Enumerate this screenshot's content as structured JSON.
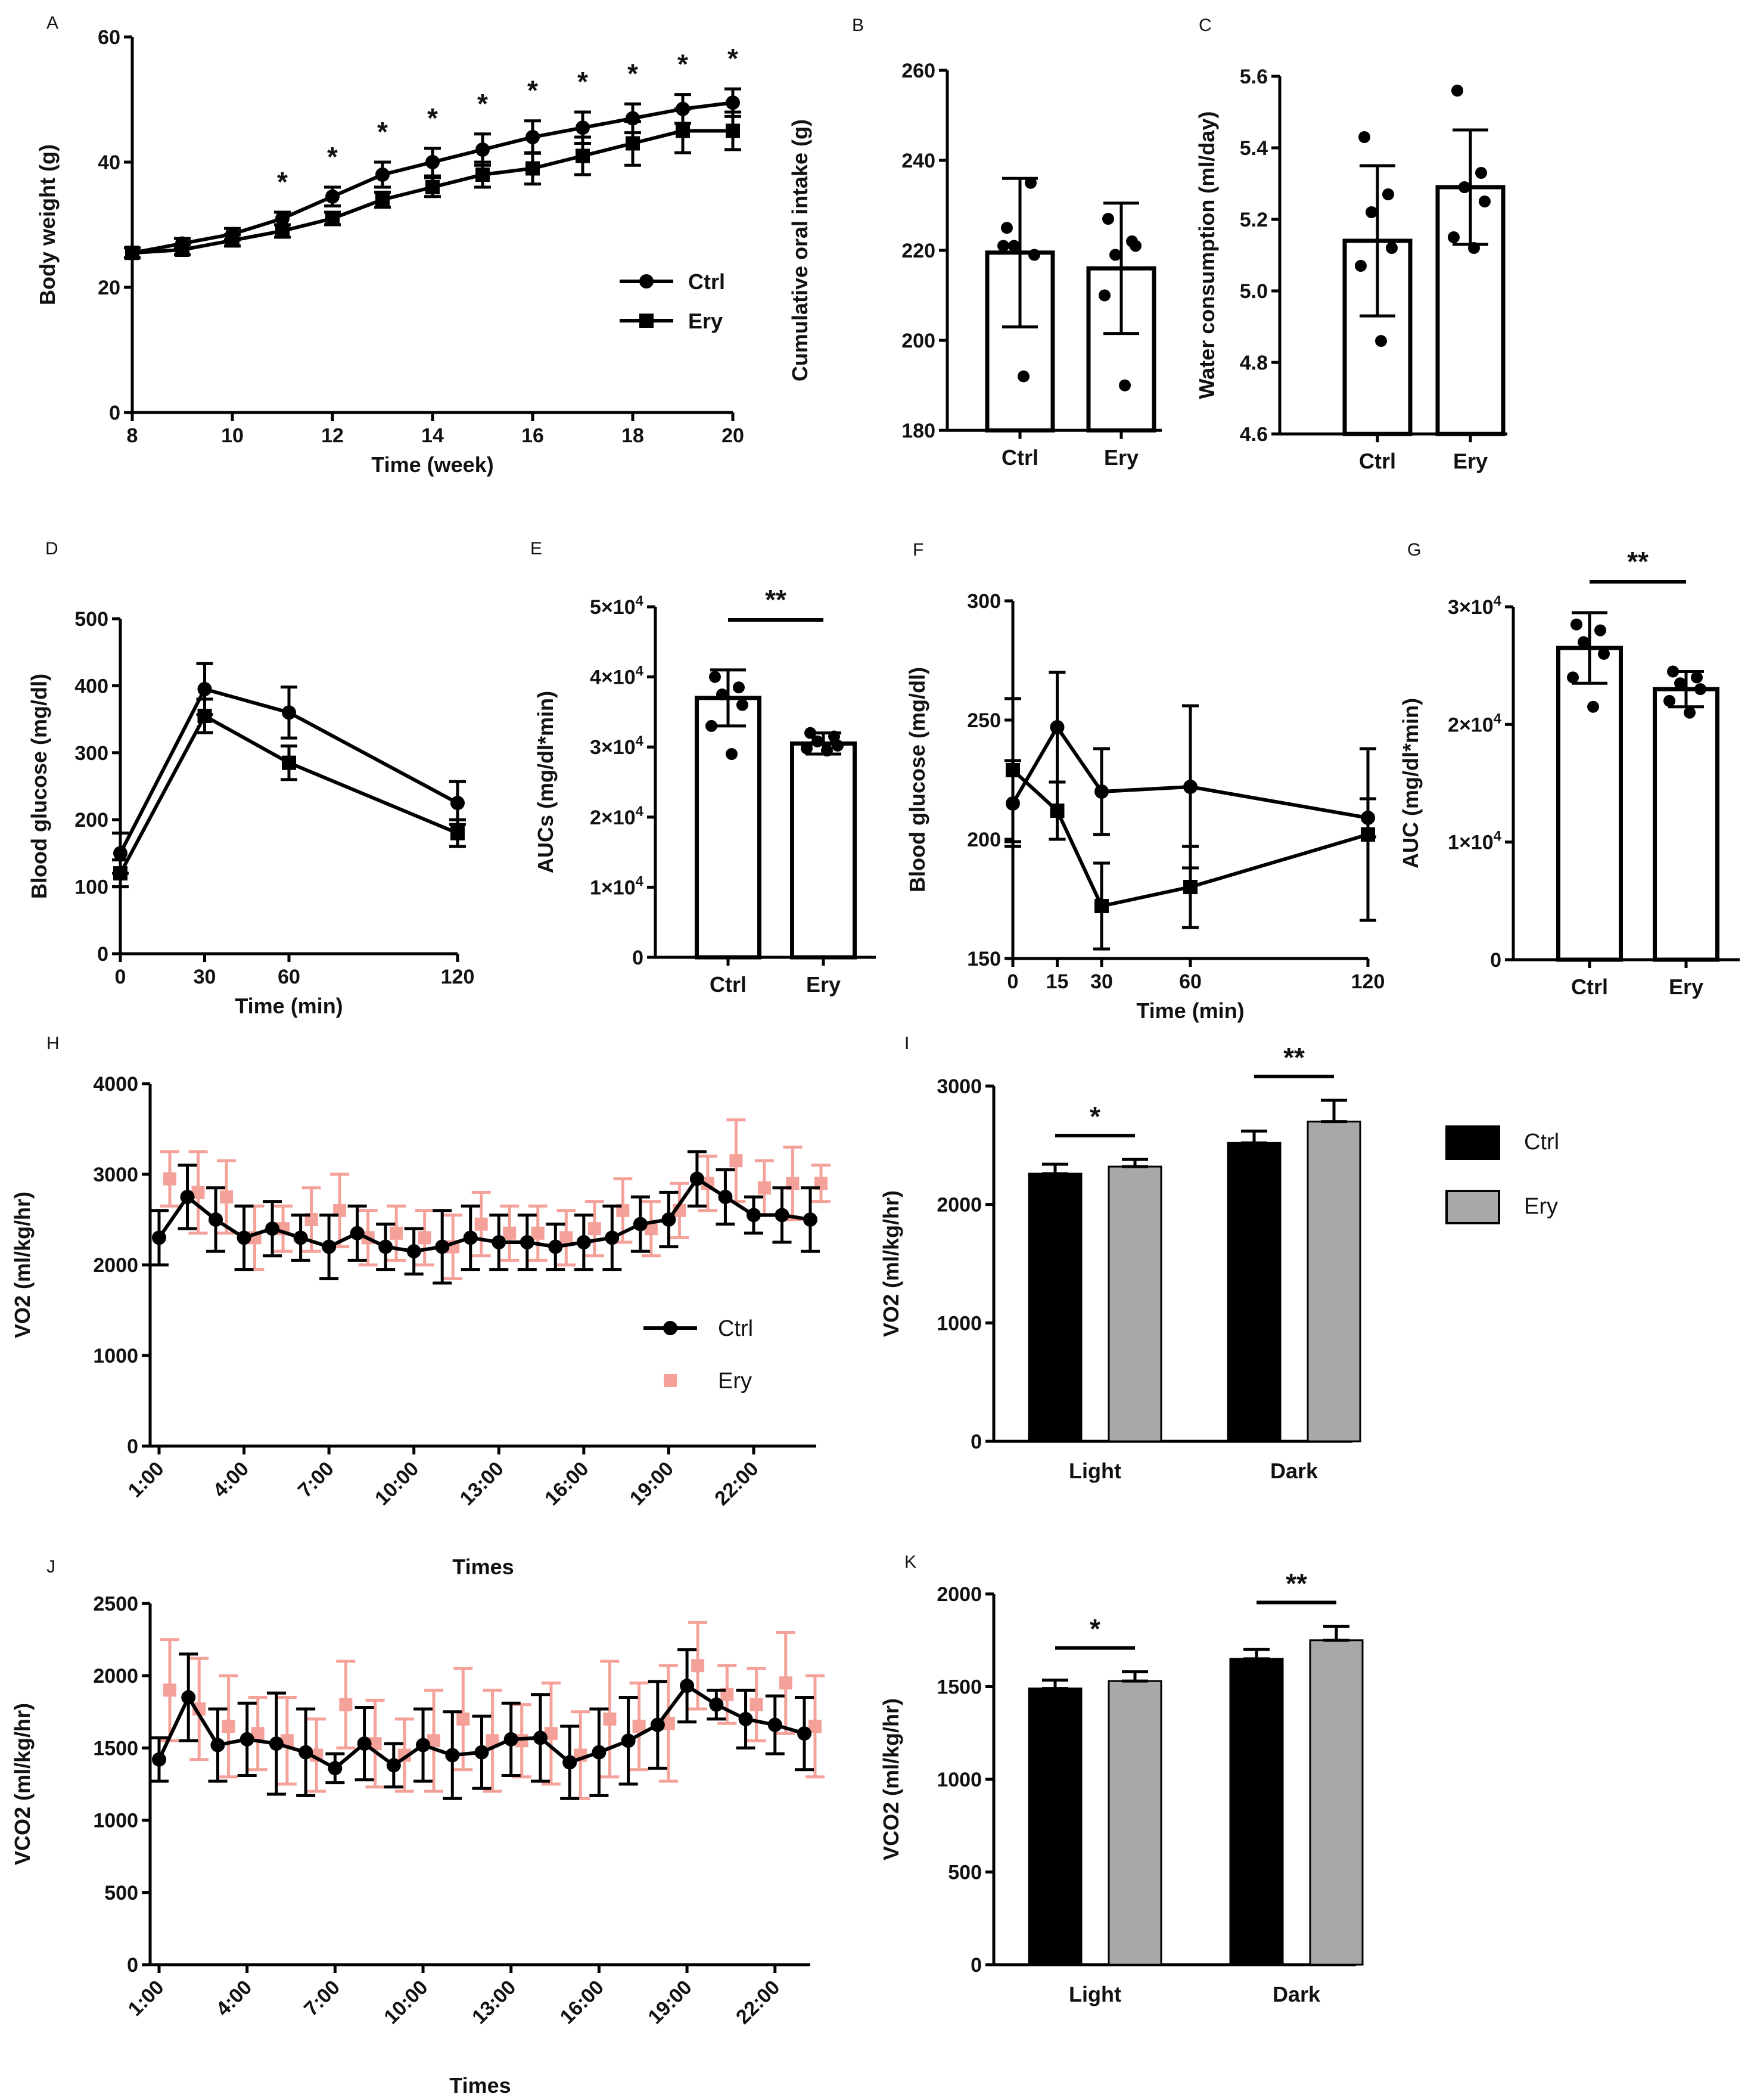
{
  "chart_data": [
    {
      "panel": "A",
      "type": "line",
      "xlabel": "Time (week)",
      "ylabel": "Body weight (g)",
      "xlim": [
        8,
        20
      ],
      "ylim": [
        0,
        60
      ],
      "xticks": [
        "8",
        "10",
        "12",
        "14",
        "16",
        "18",
        "20"
      ],
      "yticks": [
        "0",
        "20",
        "40",
        "60"
      ],
      "x": [
        8,
        9,
        10,
        11,
        12,
        13,
        14,
        15,
        16,
        17,
        18,
        19,
        20
      ],
      "series": [
        {
          "name": "Ctrl",
          "marker": "circle",
          "values": [
            25.5,
            27,
            28.5,
            31,
            34.5,
            38,
            40,
            42,
            44,
            45.5,
            47,
            48.5,
            49.5
          ],
          "err": [
            0.8,
            0.8,
            0.9,
            1,
            1.5,
            2,
            2.2,
            2.5,
            2.6,
            2.5,
            2.3,
            2.3,
            2.2
          ]
        },
        {
          "name": "Ery",
          "marker": "square",
          "values": [
            25.5,
            26,
            27.5,
            29,
            31,
            34,
            36,
            38,
            39,
            41,
            43,
            45,
            45
          ],
          "err": [
            0.8,
            0.8,
            0.9,
            1,
            1,
            1.2,
            1.5,
            2,
            2.5,
            3,
            3.5,
            3.5,
            3
          ]
        }
      ],
      "significance": {
        "label": "*",
        "at": [
          11,
          12,
          13,
          14,
          15,
          16,
          17,
          18,
          19,
          20
        ]
      }
    },
    {
      "panel": "B",
      "type": "bar",
      "ylabel": "Cumulative oral intake (g)",
      "ylim": [
        180,
        260
      ],
      "yticks": [
        "180",
        "200",
        "220",
        "240",
        "260"
      ],
      "categories": [
        "Ctrl",
        "Ery"
      ],
      "values": [
        219.5,
        216
      ],
      "err": [
        16.5,
        14.5
      ],
      "points": [
        [
          225,
          235,
          221,
          219,
          221,
          192
        ],
        [
          227,
          222,
          219,
          221,
          210,
          190
        ]
      ]
    },
    {
      "panel": "C",
      "type": "bar",
      "ylabel": "Water consumption (ml/day)",
      "ylim": [
        4.6,
        5.6
      ],
      "yticks": [
        "4.6",
        "4.8",
        "5.0",
        "5.2",
        "5.4",
        "5.6"
      ],
      "categories": [
        "Ctrl",
        "Ery"
      ],
      "values": [
        5.14,
        5.29
      ],
      "err": [
        0.21,
        0.16
      ],
      "points": [
        [
          5.43,
          5.27,
          5.22,
          5.12,
          5.07,
          4.86
        ],
        [
          5.56,
          5.33,
          5.29,
          5.25,
          5.15,
          5.12
        ]
      ]
    },
    {
      "panel": "D",
      "type": "line",
      "xlabel": "Time (min)",
      "ylabel": "Blood glucose (mg/dl)",
      "xlim": [
        0,
        120
      ],
      "ylim": [
        0,
        500
      ],
      "xticks": [
        "0",
        "30",
        "60",
        "120"
      ],
      "yticks": [
        "0",
        "100",
        "200",
        "300",
        "400",
        "500"
      ],
      "x": [
        0,
        30,
        60,
        120
      ],
      "series": [
        {
          "name": "Ctrl",
          "values": [
            150,
            395,
            360,
            225
          ],
          "err": [
            30,
            38,
            38,
            32
          ]
        },
        {
          "name": "Ery",
          "values": [
            120,
            355,
            285,
            180
          ],
          "err": [
            20,
            25,
            25,
            20
          ]
        }
      ]
    },
    {
      "panel": "E",
      "type": "bar",
      "ylabel": "AUCs (mg/dl*min)",
      "ylim": [
        0,
        50000
      ],
      "yticks": [
        "0",
        "1×10⁴",
        "2×10⁴",
        "3×10⁴",
        "4×10⁴",
        "5×10⁴"
      ],
      "categories": [
        "Ctrl",
        "Ery"
      ],
      "values": [
        37000,
        30500
      ],
      "err": [
        4000,
        1500
      ],
      "points": [
        [
          40000,
          38500,
          37500,
          36000,
          33000,
          29000
        ],
        [
          32000,
          31500,
          30800,
          30200,
          29800,
          29500
        ]
      ],
      "significance": {
        "label": "**"
      }
    },
    {
      "panel": "F",
      "type": "line",
      "xlabel": "Time (min)",
      "ylabel": "Blood glucose (mg/dl)",
      "xlim": [
        0,
        120
      ],
      "ylim": [
        150,
        300
      ],
      "xticks": [
        "0",
        "15",
        "30",
        "60",
        "120"
      ],
      "yticks": [
        "150",
        "200",
        "250",
        "300"
      ],
      "x": [
        0,
        15,
        30,
        60,
        120
      ],
      "series": [
        {
          "name": "Ctrl",
          "values": [
            215,
            247,
            220,
            222,
            209
          ],
          "err": [
            18,
            23,
            18,
            34,
            8
          ]
        },
        {
          "name": "Ery",
          "values": [
            229,
            212,
            172,
            180,
            202
          ],
          "err": [
            30,
            12,
            18,
            17,
            36
          ]
        }
      ]
    },
    {
      "panel": "G",
      "type": "bar",
      "ylabel": "AUC (mg/dl*min)",
      "ylim": [
        0,
        30000
      ],
      "yticks": [
        "0",
        "1×10⁴",
        "2×10⁴",
        "3×10⁴"
      ],
      "categories": [
        "Ctrl",
        "Ery"
      ],
      "values": [
        26500,
        23000
      ],
      "err": [
        3000,
        1500
      ],
      "points": [
        [
          28500,
          28000,
          27000,
          26000,
          24000,
          21500
        ],
        [
          24500,
          24000,
          23500,
          23000,
          22000,
          21000
        ]
      ],
      "significance": {
        "label": "**"
      }
    },
    {
      "panel": "H",
      "type": "line",
      "xlabel": "Times",
      "ylabel": "VO2 (ml/kg/hr)",
      "ylim": [
        0,
        4000
      ],
      "yticks": [
        "0",
        "1000",
        "2000",
        "3000",
        "4000"
      ],
      "xticks": [
        "1:00",
        "4:00",
        "7:00",
        "10:00",
        "13:00",
        "16:00",
        "19:00",
        "22:00"
      ],
      "series": [
        {
          "name": "Ctrl",
          "values": [
            2300,
            2750,
            2500,
            2300,
            2400,
            2300,
            2200,
            2350,
            2200,
            2150,
            2200,
            2300,
            2250,
            2250,
            2200,
            2250,
            2300,
            2450,
            2500,
            2950,
            2750,
            2550,
            2550,
            2500
          ],
          "err": [
            300,
            350,
            350,
            350,
            300,
            250,
            350,
            300,
            250,
            250,
            400,
            350,
            300,
            300,
            250,
            300,
            350,
            300,
            300,
            300,
            300,
            200,
            300,
            350
          ]
        },
        {
          "name": "Ery",
          "values": [
            2950,
            2800,
            2750,
            2300,
            2400,
            2500,
            2600,
            2300,
            2350,
            2300,
            2200,
            2450,
            2350,
            2350,
            2300,
            2400,
            2600,
            2400,
            2600,
            2900,
            3150,
            2850,
            2900,
            2900
          ],
          "err": [
            300,
            450,
            400,
            350,
            250,
            350,
            400,
            300,
            300,
            300,
            350,
            350,
            300,
            300,
            300,
            300,
            350,
            300,
            300,
            300,
            450,
            300,
            400,
            200
          ]
        }
      ]
    },
    {
      "panel": "I",
      "type": "bar",
      "ylabel": "VO2 (ml/kg/hr)",
      "ylim": [
        0,
        3000
      ],
      "yticks": [
        "0",
        "1000",
        "2000",
        "3000"
      ],
      "categories": [
        "Light",
        "Dark"
      ],
      "series": [
        {
          "name": "Ctrl",
          "color": "#000000",
          "values": [
            2260,
            2520
          ],
          "err": [
            80,
            100
          ]
        },
        {
          "name": "Ery",
          "color": "#a8a8a8",
          "values": [
            2320,
            2700
          ],
          "err": [
            60,
            180
          ]
        }
      ],
      "significance": [
        "*",
        "**"
      ]
    },
    {
      "panel": "J",
      "type": "line",
      "xlabel": "Times",
      "ylabel": "VCO2 (ml/kg/hr)",
      "ylim": [
        0,
        2500
      ],
      "yticks": [
        "0",
        "500",
        "1000",
        "1500",
        "2000",
        "2500"
      ],
      "xticks": [
        "1:00",
        "4:00",
        "7:00",
        "10:00",
        "13:00",
        "16:00",
        "19:00",
        "22:00"
      ],
      "series": [
        {
          "name": "Ctrl",
          "values": [
            1420,
            1850,
            1520,
            1560,
            1530,
            1470,
            1360,
            1530,
            1380,
            1520,
            1450,
            1470,
            1560,
            1570,
            1400,
            1470,
            1550,
            1660,
            1930,
            1800,
            1700,
            1660,
            1600
          ],
          "err": [
            150,
            300,
            250,
            250,
            350,
            300,
            100,
            250,
            150,
            250,
            300,
            250,
            250,
            300,
            250,
            300,
            300,
            300,
            250,
            100,
            200,
            200,
            250
          ]
        },
        {
          "name": "Ery",
          "values": [
            1900,
            1770,
            1650,
            1600,
            1550,
            1450,
            1800,
            1530,
            1450,
            1550,
            1700,
            1550,
            1550,
            1600,
            1450,
            1700,
            1650,
            1670,
            2070,
            1870,
            1800,
            1950,
            1650
          ],
          "err": [
            350,
            350,
            350,
            250,
            300,
            250,
            300,
            300,
            250,
            350,
            350,
            350,
            250,
            350,
            300,
            400,
            300,
            400,
            300,
            200,
            250,
            350,
            350
          ]
        }
      ]
    },
    {
      "panel": "K",
      "type": "bar",
      "ylabel": "VCO2 (ml/kg/hr)",
      "ylim": [
        0,
        2000
      ],
      "yticks": [
        "0",
        "500",
        "1000",
        "1500",
        "2000"
      ],
      "categories": [
        "Light",
        "Dark"
      ],
      "series": [
        {
          "name": "Ctrl",
          "color": "#000000",
          "values": [
            1490,
            1650
          ],
          "err": [
            45,
            50
          ]
        },
        {
          "name": "Ery",
          "color": "#a8a8a8",
          "values": [
            1530,
            1750
          ],
          "err": [
            50,
            75
          ]
        }
      ],
      "significance": [
        "*",
        "**"
      ]
    }
  ],
  "legend_I": [
    {
      "name": "Ctrl",
      "color": "#000000"
    },
    {
      "name": "Ery",
      "color": "#a8a8a8"
    }
  ],
  "colors": {
    "ctrl": "#000000",
    "ery": "#f4a19a",
    "gray": "#a8a8a8"
  }
}
